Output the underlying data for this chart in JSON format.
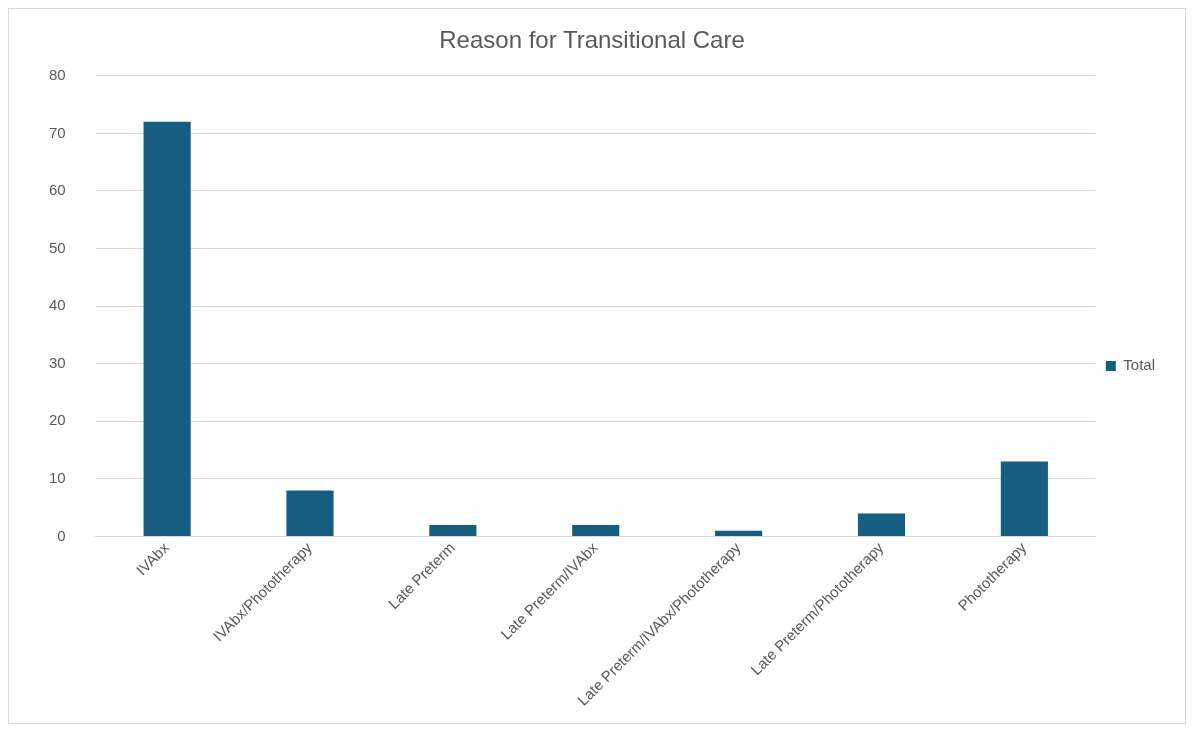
{
  "chart_data": {
    "type": "bar",
    "title": "Reason for Transitional Care",
    "categories": [
      "IVAbx",
      "IVAbx/Phototherapy",
      "Late Preterm",
      "Late Preterm/IVAbx",
      "Late Preterm/IVAbx/Phototherapy",
      "Late Preterm/Phototherapy",
      "Phototherapy"
    ],
    "series": [
      {
        "name": "Total",
        "color": "#165e80",
        "values": [
          72,
          8,
          2,
          2,
          1,
          4,
          13
        ]
      }
    ],
    "ylim": [
      0,
      80
    ],
    "yticks": [
      0,
      10,
      20,
      30,
      40,
      50,
      60,
      70,
      80
    ],
    "grid": "y",
    "legend": "right"
  }
}
